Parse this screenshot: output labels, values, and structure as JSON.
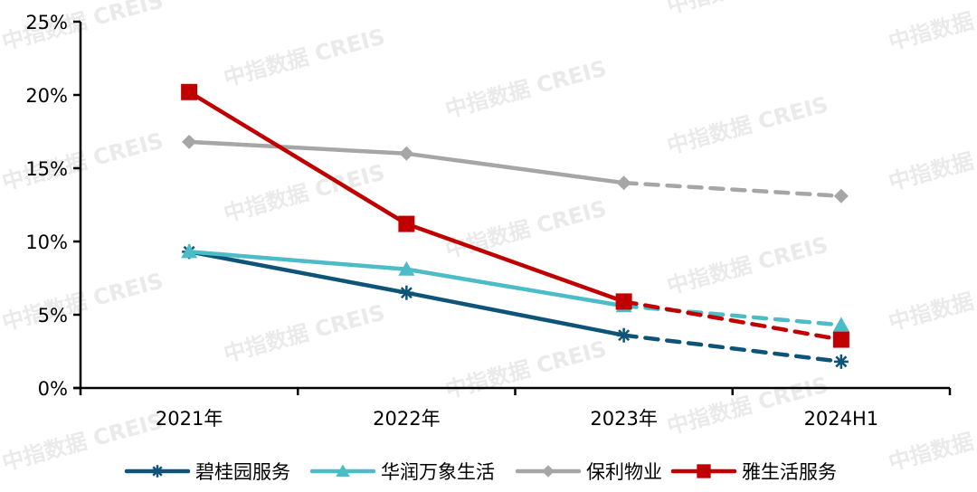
{
  "chart_data": {
    "type": "line",
    "title": "",
    "xlabel": "",
    "ylabel": "",
    "categories": [
      "2021年",
      "2022年",
      "2023年",
      "2024H1"
    ],
    "ylim": [
      0,
      25
    ],
    "yticks": [
      "0%",
      "5%",
      "10%",
      "15%",
      "20%",
      "25%"
    ],
    "grid": false,
    "legend_position": "bottom",
    "dashed_from_index": 2,
    "series": [
      {
        "name": "碧桂园服务",
        "color": "#0e5478",
        "marker": "asterisk",
        "values": [
          9.3,
          6.5,
          3.6,
          1.8
        ]
      },
      {
        "name": "华润万象生活",
        "color": "#4bbcc8",
        "marker": "triangle",
        "values": [
          9.3,
          8.1,
          5.6,
          4.3
        ]
      },
      {
        "name": "保利物业",
        "color": "#a6a6a6",
        "marker": "diamond",
        "values": [
          16.8,
          16.0,
          14.0,
          13.1
        ]
      },
      {
        "name": "雅生活服务",
        "color": "#c00000",
        "marker": "square",
        "values": [
          20.2,
          11.2,
          5.9,
          3.3
        ]
      }
    ],
    "annotations": [
      "2024H1 segment shown as dashed line"
    ]
  },
  "watermark": {
    "text": "中指数据 CREIS"
  }
}
